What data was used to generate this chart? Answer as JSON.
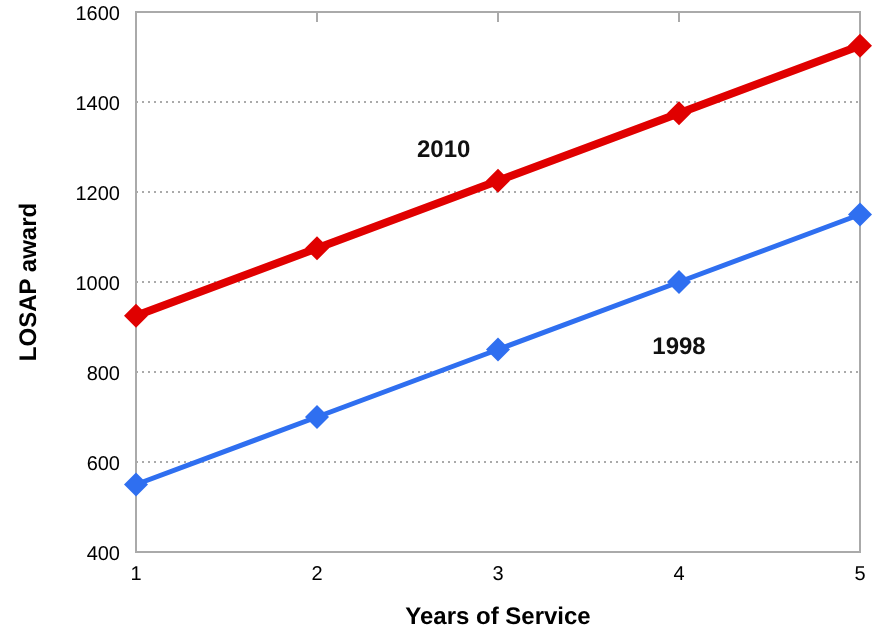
{
  "chart_data": {
    "type": "line",
    "xlabel": "Years of Service",
    "ylabel": "LOSAP award",
    "x": [
      1,
      2,
      3,
      4,
      5
    ],
    "series": [
      {
        "name": "2010",
        "color": "#e00000",
        "values": [
          925,
          1075,
          1225,
          1375,
          1525
        ]
      },
      {
        "name": "1998",
        "color": "#2f6ff0",
        "values": [
          550,
          700,
          850,
          1000,
          1150
        ]
      }
    ],
    "xlim": [
      1,
      5
    ],
    "xticks": [
      1,
      2,
      3,
      4,
      5
    ],
    "ylim": [
      400,
      1600
    ],
    "yticks": [
      400,
      600,
      800,
      1000,
      1200,
      1400,
      1600
    ],
    "grid": "y",
    "marker": "diamond",
    "line_style": "solid"
  }
}
